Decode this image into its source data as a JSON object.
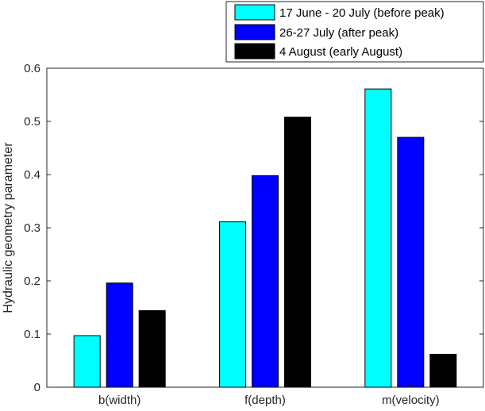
{
  "chart_data": {
    "type": "bar",
    "title": "",
    "xlabel": "",
    "ylabel": "Hydraulic geometry parameter",
    "categories": [
      "b(width)",
      "f(depth)",
      "m(velocity)"
    ],
    "ylim": [
      0,
      0.6
    ],
    "yticks": [
      "0",
      "0.1",
      "0.2",
      "0.3",
      "0.4",
      "0.5",
      "0.6"
    ],
    "grid": false,
    "legend_position": "top-right",
    "series": [
      {
        "name": "17 June - 20 July (before peak)",
        "color": "#00ffff",
        "values": [
          0.097,
          0.311,
          0.561
        ]
      },
      {
        "name": "26-27 July (after peak)",
        "color": "#0000ff",
        "values": [
          0.196,
          0.398,
          0.47
        ]
      },
      {
        "name": "4 August (early August)",
        "color": "#000000",
        "values": [
          0.144,
          0.508,
          0.062
        ]
      }
    ]
  }
}
